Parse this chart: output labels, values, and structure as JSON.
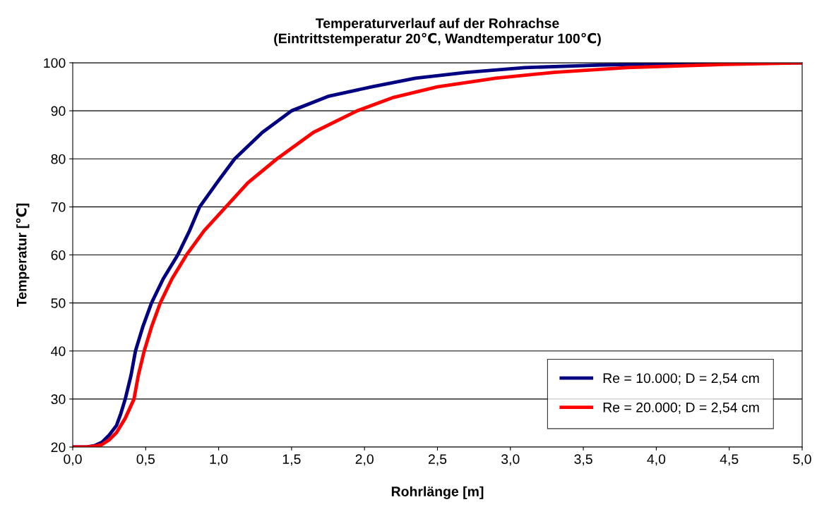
{
  "chart_data": {
    "type": "line",
    "title": "Temperaturverlauf auf der Rohrachse\n(Eintrittstemperatur 20℃, Wandtemperatur 100℃)",
    "xlabel": "Rohrlänge [m]",
    "ylabel": "Temperatur [℃]",
    "xlim": [
      0,
      5
    ],
    "xticks": [
      {
        "value": 0,
        "label": "0,0"
      },
      {
        "value": 0.5,
        "label": "0,5"
      },
      {
        "value": 1,
        "label": "1,0"
      },
      {
        "value": 1.5,
        "label": "1,5"
      },
      {
        "value": 2,
        "label": "2,0"
      },
      {
        "value": 2.5,
        "label": "2,5"
      },
      {
        "value": 3,
        "label": "3,0"
      },
      {
        "value": 3.5,
        "label": "3,5"
      },
      {
        "value": 4,
        "label": "4,0"
      },
      {
        "value": 4.5,
        "label": "4,5"
      },
      {
        "value": 5,
        "label": "5,0"
      }
    ],
    "ylim": [
      20,
      100
    ],
    "yticks": [
      20,
      30,
      40,
      50,
      60,
      70,
      80,
      90,
      100
    ],
    "grid": "y",
    "legend": "bottom right",
    "marker": "none",
    "line_style": "solid",
    "series": [
      {
        "name": "Re = 10.000; D = 2,54 cm",
        "color": "#000080",
        "x": [
          0,
          0.1,
          0.15,
          0.2,
          0.25,
          0.3,
          0.33,
          0.36,
          0.4,
          0.43,
          0.48,
          0.54,
          0.62,
          0.72,
          0.8,
          0.87,
          1.0,
          1.11,
          1.3,
          1.5,
          1.75,
          2.05,
          2.35,
          2.7,
          3.1,
          3.6,
          4.2,
          5
        ],
        "values": [
          20,
          20,
          20.3,
          21,
          22.5,
          24.5,
          27,
          30,
          35,
          40,
          45,
          50,
          55,
          60,
          65,
          70,
          75.5,
          80,
          85.5,
          90,
          93,
          95,
          96.8,
          98,
          99,
          99.5,
          99.9,
          100
        ]
      },
      {
        "name": "Re = 20.000; D = 2,54 cm",
        "color": "#ff0000",
        "x": [
          0,
          0.1,
          0.15,
          0.2,
          0.25,
          0.3,
          0.36,
          0.42,
          0.45,
          0.49,
          0.54,
          0.6,
          0.68,
          0.78,
          0.9,
          1.05,
          1.2,
          1.4,
          1.65,
          1.95,
          2.2,
          2.5,
          2.9,
          3.3,
          3.8,
          4.4,
          5
        ],
        "values": [
          20,
          20,
          20.2,
          20.5,
          21.5,
          23,
          26,
          30,
          35,
          40,
          45,
          50,
          55,
          60,
          65,
          70,
          75,
          80,
          85.5,
          90,
          92.8,
          95,
          96.8,
          98,
          99,
          99.6,
          100
        ]
      }
    ]
  }
}
